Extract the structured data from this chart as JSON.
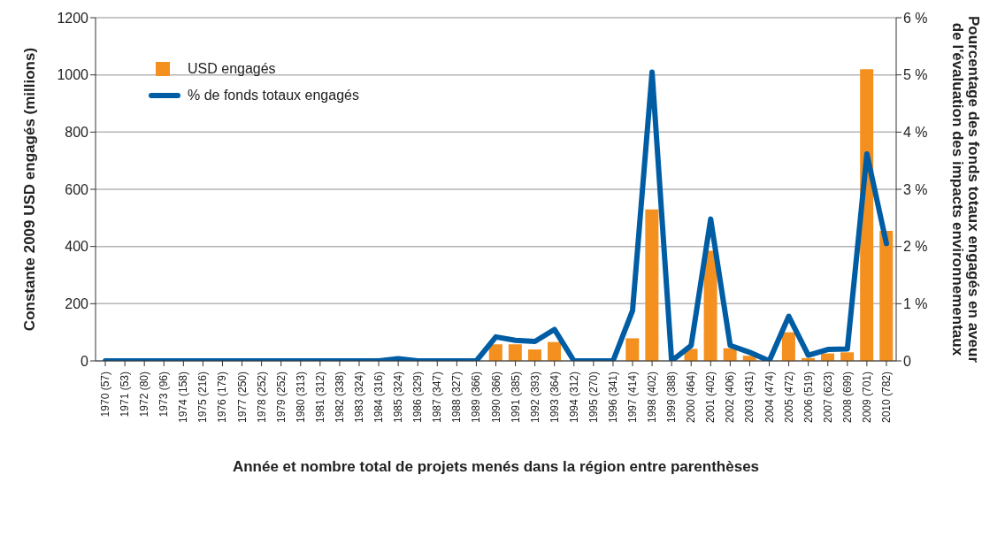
{
  "chart_data": {
    "type": "bar",
    "xlabel": "Année et nombre total de projets menés dans la région entre parenthèses",
    "ylabel": "Constante 2009 USD engagés (millions)",
    "y2label": "Pourcentage des fonds totaux engagés en aveur\nde l'évaluation des impacts environnementaux",
    "categories": [
      "1970 (57)",
      "1971 (53)",
      "1972 (80)",
      "1973 (96)",
      "1974 (158)",
      "1975 (216)",
      "1976 (179)",
      "1977 (250)",
      "1978 (252)",
      "1979 (252)",
      "1980 (313)",
      "1981 (312)",
      "1982 (338)",
      "1983 (324)",
      "1984 (316)",
      "1985 (324)",
      "1986 (329)",
      "1987 (347)",
      "1988 (327)",
      "1989 (366)",
      "1990 (366)",
      "1991 (385)",
      "1992 (393)",
      "1993 (364)",
      "1994 (312)",
      "1995 (270)",
      "1996 (341)",
      "1997 (414)",
      "1998 (402)",
      "1999 (388)",
      "2000 (464)",
      "2001 (402)",
      "2002 (406)",
      "2003 (431)",
      "2004 (474)",
      "2005 (472)",
      "2006 (519)",
      "2007 (623)",
      "2008 (699)",
      "2009 (701)",
      "2010 (782)"
    ],
    "series": [
      {
        "name": "USD engagés",
        "color": "#f39020",
        "values": [
          0,
          0,
          0,
          0,
          0,
          0,
          0,
          0,
          0,
          0,
          0,
          0,
          0,
          0,
          0,
          0,
          0,
          0,
          0,
          0,
          58,
          58,
          40,
          66,
          0,
          0,
          0,
          79,
          530,
          0,
          42,
          385,
          44,
          18,
          0,
          100,
          10,
          26,
          30,
          1020,
          455
        ]
      },
      {
        "name": "% de fonds totaux engagés",
        "type": "line",
        "axis": "y2",
        "color": "#005da4",
        "values": [
          0,
          0,
          0,
          0,
          0,
          0,
          0,
          0,
          0,
          0,
          0,
          0,
          0,
          0,
          0,
          0.04,
          0,
          0,
          0,
          0,
          0.42,
          0.36,
          0.34,
          0.55,
          0,
          0,
          0,
          0.88,
          5.05,
          0,
          0.27,
          2.48,
          0.27,
          0.15,
          0,
          0.78,
          0.1,
          0.2,
          0.21,
          3.62,
          2.05
        ]
      }
    ],
    "ylim": [
      0,
      1200
    ],
    "yticks": [
      0,
      200,
      400,
      600,
      800,
      1000,
      1200
    ],
    "y2lim": [
      0,
      6
    ],
    "y2ticks": [
      {
        "value": 0,
        "label": "0"
      },
      {
        "value": 1,
        "label": "1 %"
      },
      {
        "value": 2,
        "label": "2 %"
      },
      {
        "value": 3,
        "label": "3 %"
      },
      {
        "value": 4,
        "label": "4 %"
      },
      {
        "value": 5,
        "label": "5 %"
      },
      {
        "value": 6,
        "label": "6 %"
      }
    ],
    "grid": "y",
    "legend": "top left",
    "marker": "none",
    "line_style": "solid"
  }
}
